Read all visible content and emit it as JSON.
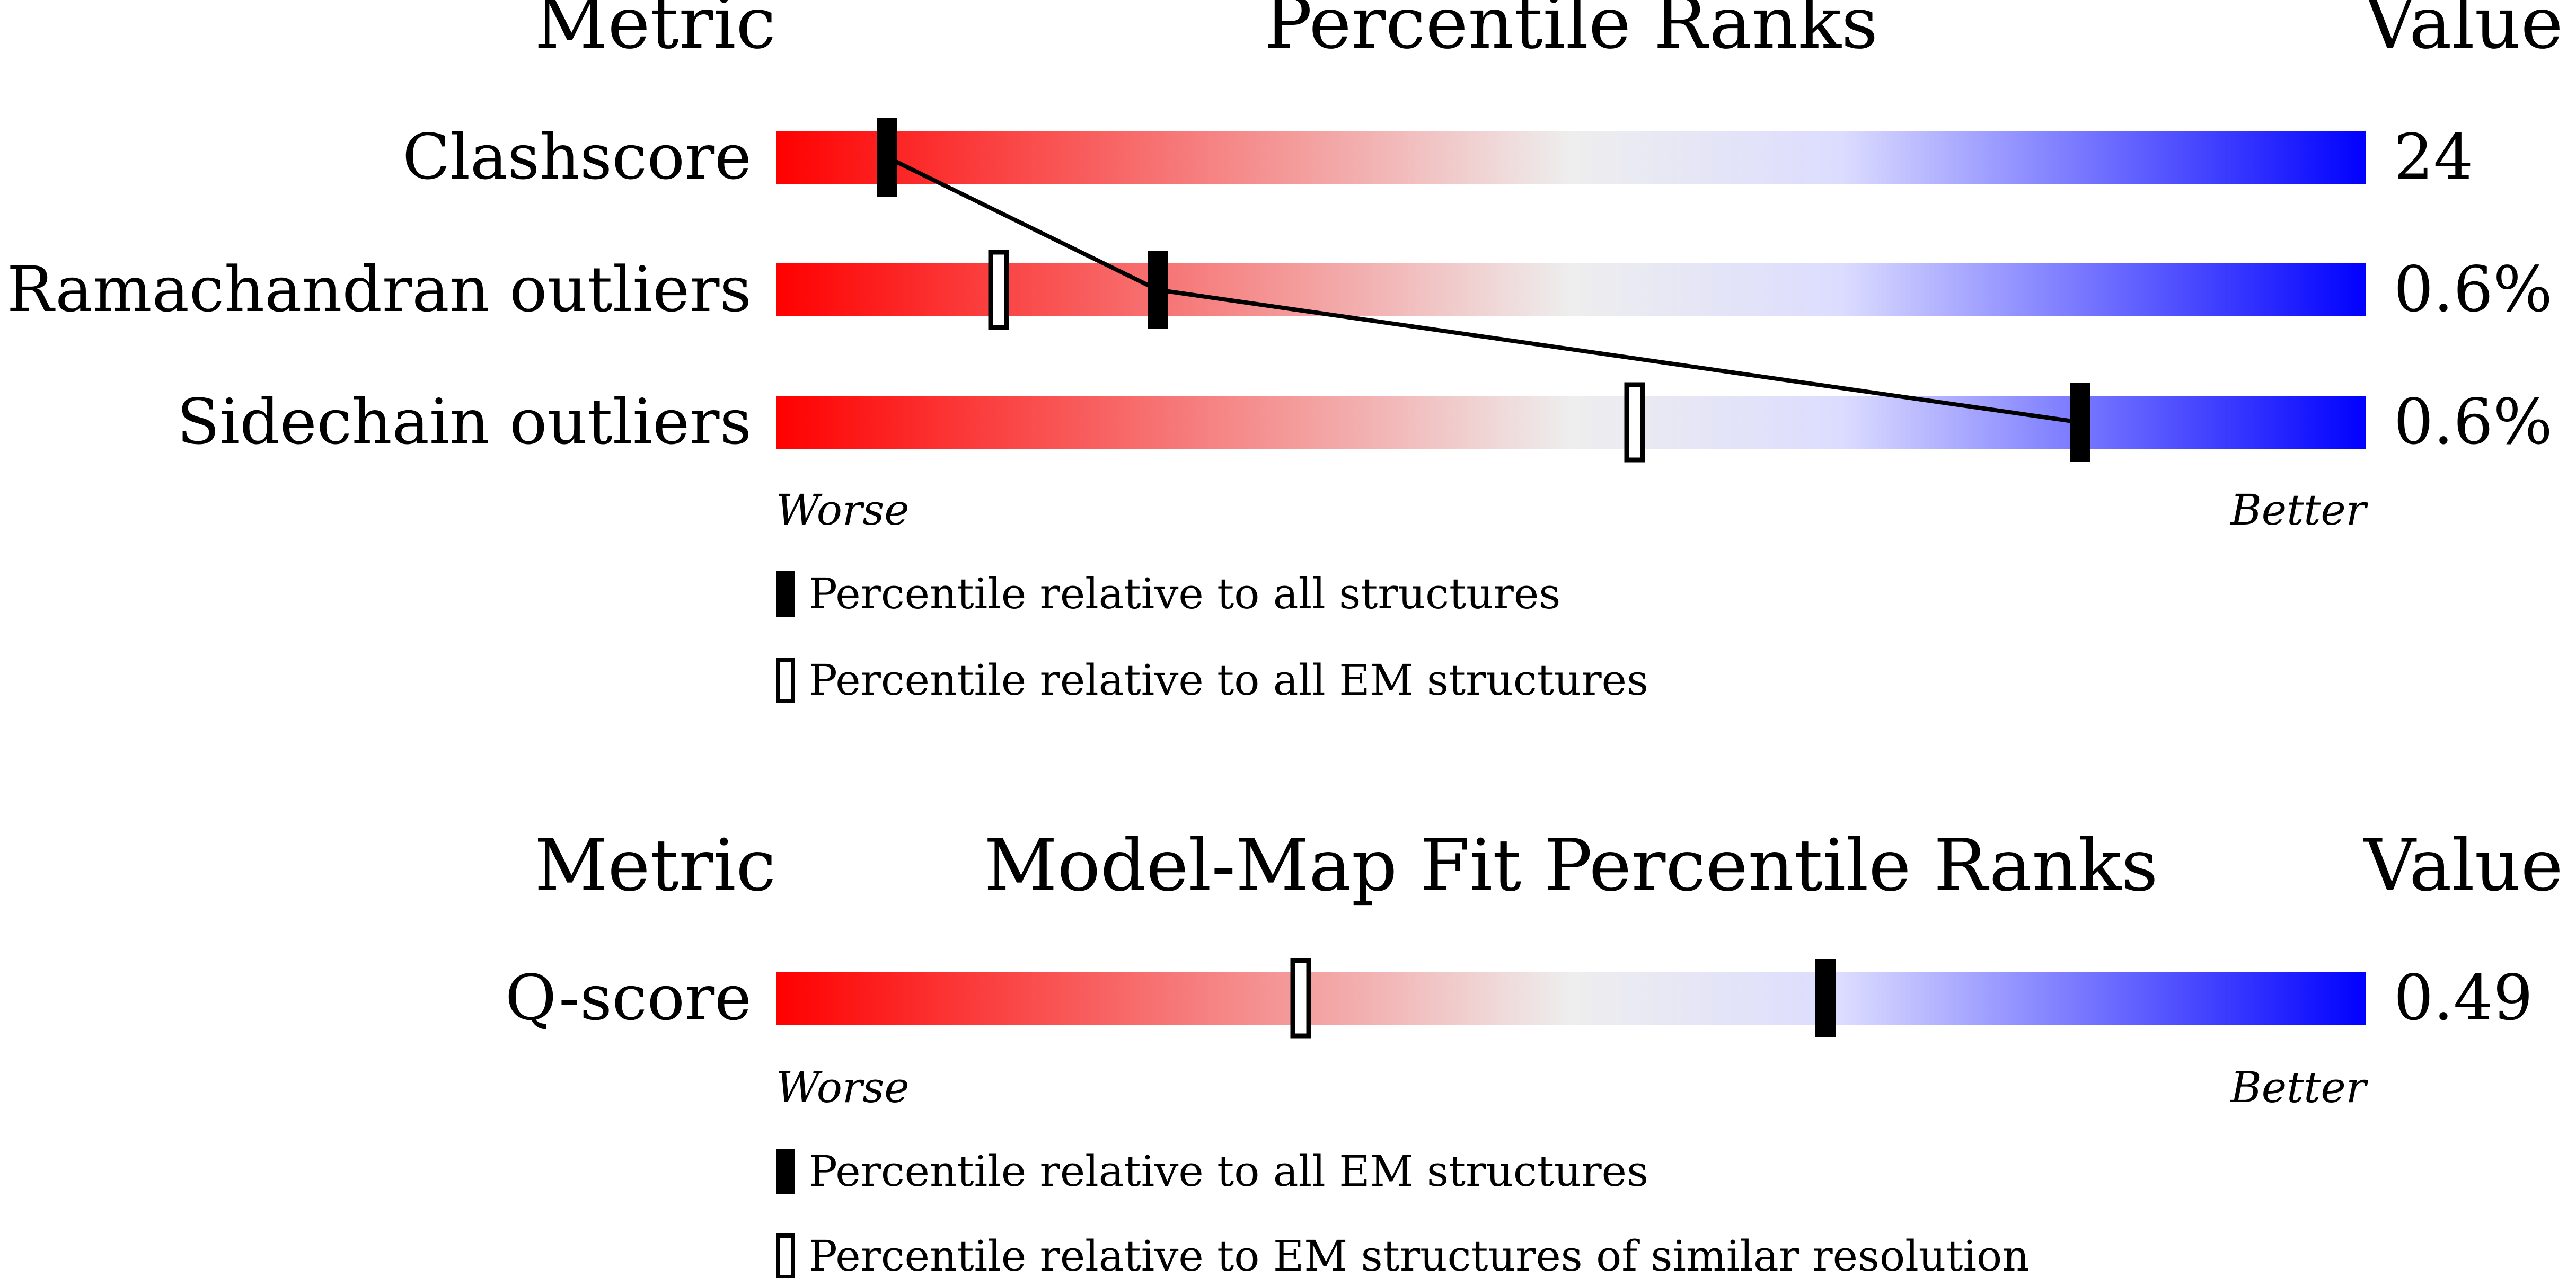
{
  "chart_data": [
    {
      "type": "percentile_strip",
      "header": {
        "metric": "Metric",
        "title": "Percentile Ranks",
        "value": "Value"
      },
      "rows": [
        {
          "label": "Clashscore",
          "value": "24",
          "percentile_all": 7,
          "percentile_em": null
        },
        {
          "label": "Ramachandran outliers",
          "value": "0.6%",
          "percentile_all": 24,
          "percentile_em": 14
        },
        {
          "label": "Sidechain outliers",
          "value": "0.6%",
          "percentile_all": 82,
          "percentile_em": 54
        }
      ],
      "axis": {
        "worse": "Worse",
        "better": "Better",
        "range": [
          0,
          100
        ]
      },
      "legend": [
        {
          "style": "filled",
          "label": "Percentile relative to all structures"
        },
        {
          "style": "hollow",
          "label": "Percentile relative to all EM structures"
        }
      ],
      "connect_filled_markers": true
    },
    {
      "type": "percentile_strip",
      "header": {
        "metric": "Metric",
        "title": "Model-Map Fit Percentile Ranks",
        "value": "Value"
      },
      "rows": [
        {
          "label": "Q-score",
          "value": "0.49",
          "percentile_all": 66,
          "percentile_em": 33
        }
      ],
      "axis": {
        "worse": "Worse",
        "better": "Better",
        "range": [
          0,
          100
        ]
      },
      "legend": [
        {
          "style": "filled",
          "label": "Percentile relative to all EM structures"
        },
        {
          "style": "hollow",
          "label": "Percentile relative to EM structures of similar resolution"
        }
      ],
      "connect_filled_markers": false
    }
  ],
  "colors": {
    "worse": "#ff0000",
    "middle": "#eeeeee",
    "better_light": "#dcdcff",
    "better": "#0000ff",
    "marker": "#000000"
  }
}
